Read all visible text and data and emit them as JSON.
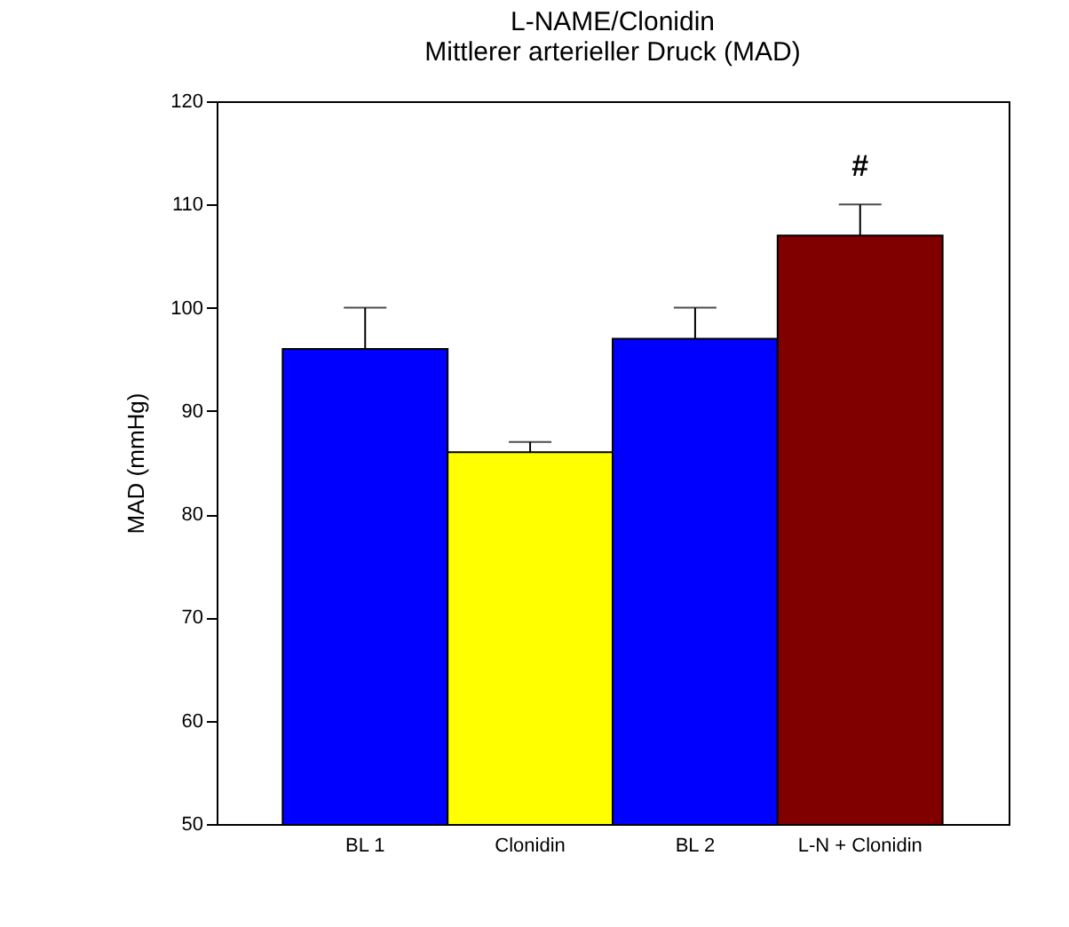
{
  "chart_data": {
    "type": "bar",
    "title": "L-NAME/Clonidin",
    "subtitle": "Mittlerer arterieller Druck (MAD)",
    "ylabel": "MAD (mmHg)",
    "categories": [
      "BL 1",
      "Clonidin",
      "BL 2",
      "L-N + Clonidin"
    ],
    "values": [
      96,
      86,
      97,
      107
    ],
    "colors": [
      "#0000ff",
      "#ffff00",
      "#0000ff",
      "#800000"
    ],
    "errors": [
      [
        96,
        100
      ],
      [
        86,
        87
      ],
      [
        97,
        100
      ],
      [
        107,
        110
      ]
    ],
    "ylim": [
      50,
      120
    ],
    "yticks": [
      50,
      60,
      70,
      80,
      90,
      100,
      110,
      120
    ],
    "grid": false,
    "legend": false,
    "annotations": [
      {
        "text": "#",
        "x": "L-N + Clonidin",
        "y": 110
      }
    ]
  }
}
